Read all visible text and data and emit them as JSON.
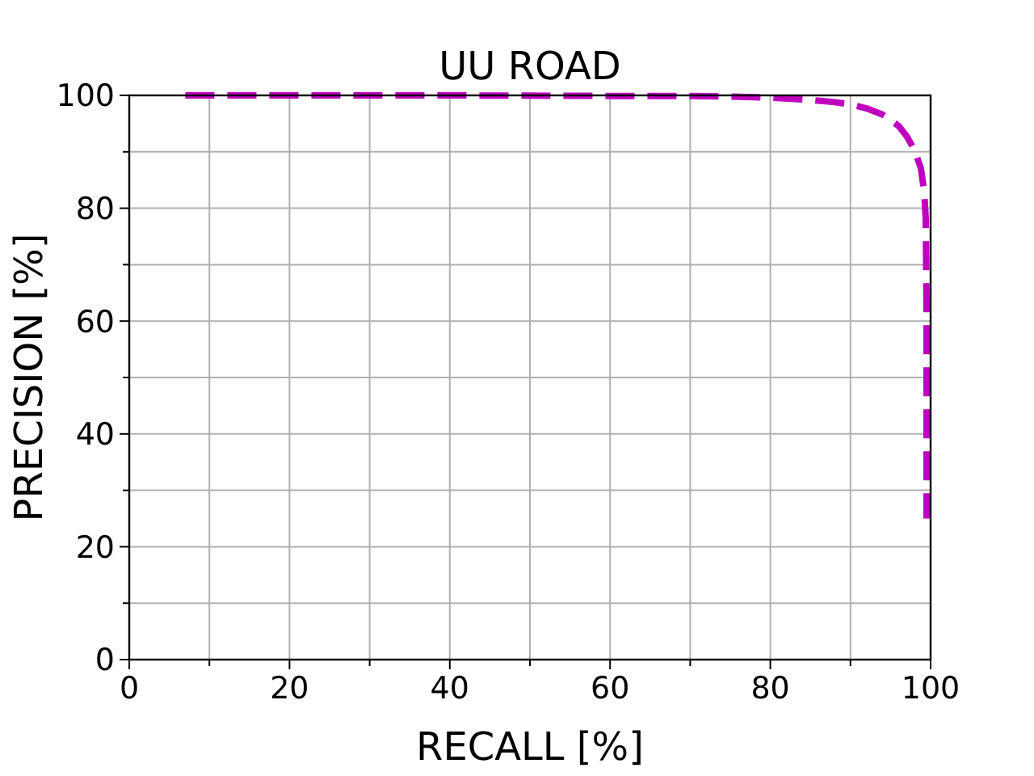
{
  "chart_data": {
    "type": "line",
    "title": "UU ROAD",
    "xlabel": "RECALL [%]",
    "ylabel": "PRECISION [%]",
    "xlim": [
      0,
      100
    ],
    "ylim": [
      0,
      100
    ],
    "xticks": [
      0,
      {
        "value": 10,
        "label": null
      },
      20,
      {
        "value": 30,
        "label": null
      },
      40,
      {
        "value": 50,
        "label": null
      },
      60,
      {
        "value": 70,
        "label": null
      },
      80,
      {
        "value": 90,
        "label": null
      },
      100
    ],
    "yticks": [
      0,
      {
        "value": 10,
        "label": null
      },
      20,
      {
        "value": 30,
        "label": null
      },
      40,
      {
        "value": 50,
        "label": null
      },
      60,
      {
        "value": 70,
        "label": null
      },
      80,
      {
        "value": 90,
        "label": null
      },
      100
    ],
    "grid": true,
    "line_style": "dashed",
    "series": [
      {
        "color": "#bf00bf",
        "x": [
          7,
          20,
          40,
          60,
          70,
          75,
          80,
          85,
          88,
          90,
          92,
          94,
          96,
          97,
          98,
          98.8,
          99.2,
          99.4,
          99.5,
          99.5,
          99.5
        ],
        "values": [
          100,
          100,
          100,
          99.9,
          99.9,
          99.8,
          99.6,
          99.2,
          98.8,
          98.4,
          97.7,
          96.6,
          94.6,
          92.8,
          90.3,
          87,
          83,
          78,
          60,
          40,
          25
        ]
      }
    ]
  }
}
